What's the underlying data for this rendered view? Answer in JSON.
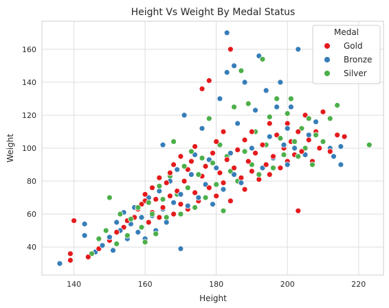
{
  "chart_data": {
    "type": "scatter",
    "title": "Height Vs Weight By Medal Status",
    "xlabel": "Height",
    "ylabel": "Weight",
    "xlim": [
      131,
      227
    ],
    "ylim": [
      23,
      177
    ],
    "xticks": [
      140,
      160,
      180,
      200,
      220
    ],
    "yticks": [
      40,
      60,
      80,
      100,
      120,
      140,
      160
    ],
    "grid": true,
    "legend": {
      "title": "Medal",
      "position": "top-right"
    },
    "colors": {
      "Gold": "#e41a1c",
      "Bronze": "#377eb8",
      "Silver": "#4daf4a"
    },
    "series": [
      {
        "name": "Gold",
        "points": [
          [
            139,
            32
          ],
          [
            139,
            36
          ],
          [
            140,
            56
          ],
          [
            144,
            34
          ],
          [
            147,
            39
          ],
          [
            150,
            44
          ],
          [
            152,
            49
          ],
          [
            154,
            52
          ],
          [
            155,
            56
          ],
          [
            157,
            58
          ],
          [
            158,
            63
          ],
          [
            159,
            66
          ],
          [
            160,
            68
          ],
          [
            160,
            72
          ],
          [
            161,
            55
          ],
          [
            162,
            61
          ],
          [
            162,
            76
          ],
          [
            163,
            69
          ],
          [
            164,
            58
          ],
          [
            164,
            82
          ],
          [
            165,
            64
          ],
          [
            166,
            79
          ],
          [
            167,
            85
          ],
          [
            167,
            71
          ],
          [
            168,
            60
          ],
          [
            168,
            90
          ],
          [
            169,
            74
          ],
          [
            170,
            66
          ],
          [
            170,
            95
          ],
          [
            171,
            80
          ],
          [
            172,
            63
          ],
          [
            172,
            87
          ],
          [
            173,
            92
          ],
          [
            174,
            73
          ],
          [
            174,
            101
          ],
          [
            175,
            68
          ],
          [
            176,
            83
          ],
          [
            176,
            136
          ],
          [
            177,
            89
          ],
          [
            178,
            76
          ],
          [
            178,
            141
          ],
          [
            179,
            97
          ],
          [
            180,
            71
          ],
          [
            180,
            104
          ],
          [
            181,
            85
          ],
          [
            182,
            79
          ],
          [
            182,
            110
          ],
          [
            183,
            93
          ],
          [
            184,
            160
          ],
          [
            184,
            68
          ],
          [
            185,
            88
          ],
          [
            186,
            99
          ],
          [
            187,
            82
          ],
          [
            188,
            105
          ],
          [
            188,
            75
          ],
          [
            189,
            92
          ],
          [
            190,
            86
          ],
          [
            190,
            110
          ],
          [
            191,
            97
          ],
          [
            192,
            81
          ],
          [
            193,
            102
          ],
          [
            194,
            90
          ],
          [
            195,
            115
          ],
          [
            195,
            84
          ],
          [
            196,
            95
          ],
          [
            197,
            108
          ],
          [
            198,
            88
          ],
          [
            199,
            100
          ],
          [
            200,
            115
          ],
          [
            200,
            92
          ],
          [
            201,
            104
          ],
          [
            202,
            96
          ],
          [
            203,
            62
          ],
          [
            203,
            110
          ],
          [
            204,
            98
          ],
          [
            205,
            120
          ],
          [
            206,
            105
          ],
          [
            207,
            92
          ],
          [
            208,
            110
          ],
          [
            209,
            100
          ],
          [
            210,
            122
          ],
          [
            212,
            98
          ],
          [
            214,
            108
          ],
          [
            216,
            107
          ]
        ]
      },
      {
        "name": "Bronze",
        "points": [
          [
            136,
            30
          ],
          [
            143,
            47
          ],
          [
            143,
            54
          ],
          [
            146,
            37
          ],
          [
            148,
            41
          ],
          [
            150,
            46
          ],
          [
            151,
            38
          ],
          [
            152,
            55
          ],
          [
            153,
            50
          ],
          [
            154,
            61
          ],
          [
            155,
            45
          ],
          [
            156,
            54
          ],
          [
            157,
            64
          ],
          [
            158,
            49
          ],
          [
            159,
            58
          ],
          [
            160,
            45
          ],
          [
            161,
            70
          ],
          [
            162,
            59
          ],
          [
            163,
            50
          ],
          [
            164,
            74
          ],
          [
            165,
            63
          ],
          [
            165,
            102
          ],
          [
            166,
            55
          ],
          [
            167,
            80
          ],
          [
            168,
            67
          ],
          [
            169,
            87
          ],
          [
            170,
            39
          ],
          [
            170,
            72
          ],
          [
            171,
            120
          ],
          [
            172,
            65
          ],
          [
            173,
            84
          ],
          [
            174,
            96
          ],
          [
            175,
            70
          ],
          [
            176,
            112
          ],
          [
            177,
            78
          ],
          [
            178,
            93
          ],
          [
            179,
            66
          ],
          [
            180,
            88
          ],
          [
            181,
            130
          ],
          [
            182,
            75
          ],
          [
            183,
            170
          ],
          [
            183,
            146
          ],
          [
            184,
            97
          ],
          [
            185,
            150
          ],
          [
            185,
            84
          ],
          [
            186,
            115
          ],
          [
            187,
            79
          ],
          [
            188,
            140
          ],
          [
            189,
            92
          ],
          [
            190,
            100
          ],
          [
            191,
            123
          ],
          [
            192,
            156
          ],
          [
            193,
            88
          ],
          [
            194,
            135
          ],
          [
            195,
            107
          ],
          [
            196,
            94
          ],
          [
            197,
            125
          ],
          [
            198,
            140
          ],
          [
            199,
            102
          ],
          [
            200,
            90
          ],
          [
            200,
            112
          ],
          [
            201,
            125
          ],
          [
            202,
            100
          ],
          [
            203,
            160
          ],
          [
            205,
            96
          ],
          [
            206,
            108
          ],
          [
            208,
            116
          ],
          [
            210,
            104
          ],
          [
            212,
            100
          ],
          [
            213,
            95
          ],
          [
            215,
            90
          ],
          [
            215,
            101
          ]
        ]
      },
      {
        "name": "Silver",
        "points": [
          [
            145,
            36
          ],
          [
            147,
            45
          ],
          [
            149,
            50
          ],
          [
            150,
            70
          ],
          [
            152,
            42
          ],
          [
            153,
            60
          ],
          [
            155,
            47
          ],
          [
            156,
            57
          ],
          [
            158,
            64
          ],
          [
            159,
            52
          ],
          [
            160,
            43
          ],
          [
            161,
            67
          ],
          [
            162,
            60
          ],
          [
            163,
            48
          ],
          [
            164,
            77
          ],
          [
            165,
            69
          ],
          [
            166,
            58
          ],
          [
            167,
            83
          ],
          [
            168,
            104
          ],
          [
            169,
            72
          ],
          [
            170,
            60
          ],
          [
            171,
            89
          ],
          [
            172,
            76
          ],
          [
            173,
            98
          ],
          [
            174,
            64
          ],
          [
            175,
            84
          ],
          [
            176,
            94
          ],
          [
            177,
            70
          ],
          [
            178,
            118
          ],
          [
            179,
            91
          ],
          [
            180,
            78
          ],
          [
            181,
            102
          ],
          [
            182,
            62
          ],
          [
            183,
            95
          ],
          [
            184,
            86
          ],
          [
            185,
            125
          ],
          [
            186,
            80
          ],
          [
            187,
            147
          ],
          [
            188,
            98
          ],
          [
            189,
            127
          ],
          [
            190,
            90
          ],
          [
            191,
            110
          ],
          [
            192,
            84
          ],
          [
            193,
            154
          ],
          [
            194,
            102
          ],
          [
            195,
            119
          ],
          [
            196,
            88
          ],
          [
            197,
            130
          ],
          [
            198,
            106
          ],
          [
            199,
            96
          ],
          [
            200,
            121
          ],
          [
            201,
            130
          ],
          [
            202,
            104
          ],
          [
            203,
            95
          ],
          [
            204,
            112
          ],
          [
            205,
            100
          ],
          [
            206,
            118
          ],
          [
            207,
            90
          ],
          [
            208,
            108
          ],
          [
            210,
            104
          ],
          [
            212,
            118
          ],
          [
            214,
            126
          ],
          [
            223,
            102
          ]
        ]
      }
    ]
  }
}
